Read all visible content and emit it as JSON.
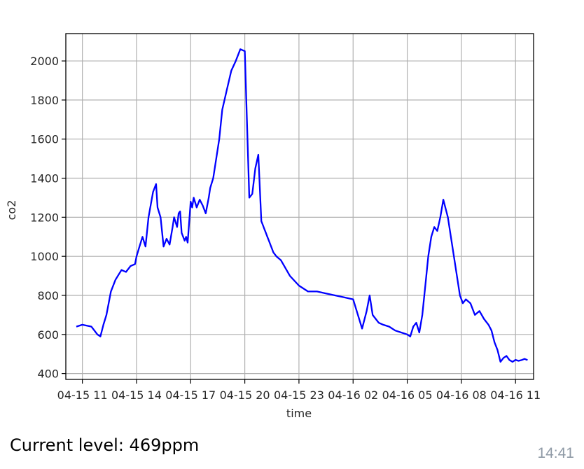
{
  "message": {
    "caption": "Current level: 469ppm",
    "time": "14:41"
  },
  "chart_data": {
    "type": "line",
    "title": "",
    "xlabel": "time",
    "ylabel": "co2",
    "x_tick_labels": [
      "04-15 11",
      "04-15 14",
      "04-15 17",
      "04-15 20",
      "04-15 23",
      "04-16 02",
      "04-16 05",
      "04-16 08",
      "04-16 11"
    ],
    "y_tick_labels": [
      "400",
      "600",
      "800",
      "1000",
      "1200",
      "1400",
      "1600",
      "1800",
      "2000"
    ],
    "y_ticks": [
      400,
      600,
      800,
      1000,
      1200,
      1400,
      1600,
      1800,
      2000
    ],
    "xlim": [
      "04-15 10:05",
      "04-16 12:00"
    ],
    "ylim": [
      370,
      2140
    ],
    "grid": true,
    "line_color": "#0000ff",
    "series": [
      {
        "x": [
          "04-15 10:40",
          "04-15 11:00",
          "04-15 11:15",
          "04-15 11:30",
          "04-15 11:40",
          "04-15 11:50",
          "04-15 12:00",
          "04-15 12:10",
          "04-15 12:20",
          "04-15 12:35",
          "04-15 12:50",
          "04-15 13:10",
          "04-15 13:25",
          "04-15 13:40",
          "04-15 13:55",
          "04-15 14:00",
          "04-15 14:10",
          "04-15 14:20",
          "04-15 14:30",
          "04-15 14:40",
          "04-15 14:55",
          "04-15 15:05",
          "04-15 15:10",
          "04-15 15:20",
          "04-15 15:30",
          "04-15 15:40",
          "04-15 15:50",
          "04-15 16:00",
          "04-15 16:05",
          "04-15 16:15",
          "04-15 16:20",
          "04-15 16:25",
          "04-15 16:30",
          "04-15 16:40",
          "04-15 16:45",
          "04-15 16:50",
          "04-15 17:00",
          "04-15 17:05",
          "04-15 17:10",
          "04-15 17:20",
          "04-15 17:30",
          "04-15 17:40",
          "04-15 17:50",
          "04-15 18:00",
          "04-15 18:05",
          "04-15 18:15",
          "04-15 18:25",
          "04-15 18:35",
          "04-15 18:45",
          "04-15 19:00",
          "04-15 19:15",
          "04-15 19:30",
          "04-15 19:45",
          "04-15 20:00",
          "04-15 20:15",
          "04-15 20:25",
          "04-15 20:35",
          "04-15 20:45",
          "04-15 20:55",
          "04-15 21:00",
          "04-15 21:05",
          "04-15 21:10",
          "04-15 21:15",
          "04-15 21:20",
          "04-15 21:25",
          "04-15 21:30",
          "04-15 21:35",
          "04-15 21:45",
          "04-15 22:00",
          "04-15 22:15",
          "04-15 22:30",
          "04-15 23:00",
          "04-15 23:30",
          "04-16 00:00",
          "04-16 00:30",
          "04-16 01:00",
          "04-16 01:30",
          "04-16 02:00",
          "04-16 02:30",
          "04-16 02:45",
          "04-16 02:55",
          "04-16 03:05",
          "04-16 03:15",
          "04-16 03:25",
          "04-16 03:40",
          "04-16 04:00",
          "04-16 04:20",
          "04-16 04:40",
          "04-16 05:00",
          "04-16 05:10",
          "04-16 05:20",
          "04-16 05:30",
          "04-16 05:40",
          "04-16 05:50",
          "04-16 06:00",
          "04-16 06:10",
          "04-16 06:20",
          "04-16 06:30",
          "04-16 06:40",
          "04-16 06:50",
          "04-16 07:00",
          "04-16 07:15",
          "04-16 07:25",
          "04-16 07:35",
          "04-16 07:45",
          "04-16 07:55",
          "04-16 08:05",
          "04-16 08:15",
          "04-16 08:30",
          "04-16 08:45",
          "04-16 09:00",
          "04-16 09:15",
          "04-16 09:30",
          "04-16 09:40",
          "04-16 09:50",
          "04-16 10:00",
          "04-16 10:10",
          "04-16 10:20",
          "04-16 10:30",
          "04-16 10:40",
          "04-16 10:50",
          "04-16 11:00",
          "04-16 11:10",
          "04-16 11:20",
          "04-16 11:30",
          "04-16 11:40"
        ],
        "values": [
          640,
          650,
          645,
          640,
          620,
          600,
          590,
          650,
          700,
          820,
          880,
          930,
          920,
          950,
          960,
          1000,
          1050,
          1100,
          1050,
          1200,
          1330,
          1370,
          1250,
          1200,
          1050,
          1090,
          1060,
          1150,
          1200,
          1150,
          1220,
          1230,
          1120,
          1080,
          1100,
          1070,
          1280,
          1250,
          1300,
          1250,
          1290,
          1260,
          1220,
          1300,
          1350,
          1400,
          1500,
          1600,
          1750,
          1850,
          1950,
          2000,
          2060,
          2050,
          1300,
          1320,
          1450,
          1520,
          1180,
          1160,
          1140,
          1120,
          1100,
          1080,
          1060,
          1040,
          1020,
          1000,
          980,
          940,
          900,
          850,
          820,
          820,
          810,
          800,
          790,
          780,
          630,
          720,
          800,
          700,
          680,
          660,
          650,
          640,
          620,
          610,
          600,
          590,
          640,
          660,
          610,
          700,
          850,
          1000,
          1100,
          1150,
          1130,
          1200,
          1290,
          1200,
          1100,
          1000,
          900,
          800,
          760,
          780,
          760,
          700,
          720,
          680,
          650,
          620,
          560,
          520,
          460,
          480,
          490,
          469,
          460,
          470,
          465,
          469,
          475,
          469
        ]
      }
    ]
  }
}
